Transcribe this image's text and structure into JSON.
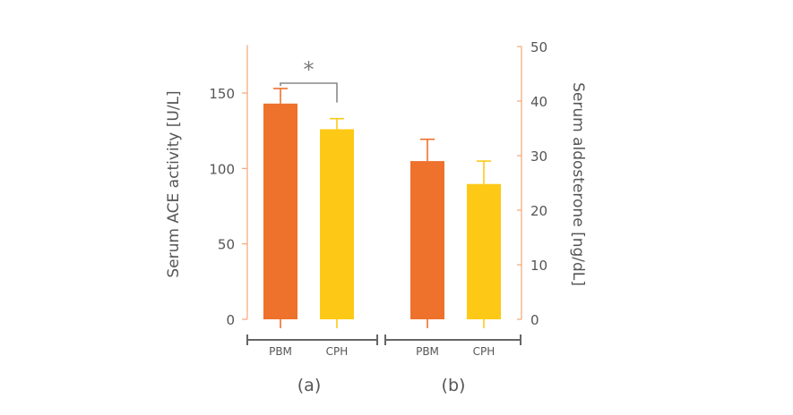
{
  "chart_data": [
    {
      "panel_label": "(a)",
      "type": "bar",
      "categories": [
        "PBM",
        "CPH"
      ],
      "values": [
        143,
        126
      ],
      "errors": [
        10,
        7
      ],
      "colors": [
        "#ee712c",
        "#fdc916"
      ],
      "ylabel": "Serum ACE activity [U/L]",
      "ylim": [
        0,
        180
      ],
      "yticks": [
        0,
        50,
        100,
        150
      ],
      "significance": {
        "between": [
          0,
          1
        ],
        "label": "*"
      }
    },
    {
      "panel_label": "(b)",
      "type": "bar",
      "categories": [
        "PBM",
        "CPH"
      ],
      "values": [
        29,
        24.8
      ],
      "errors": [
        4,
        4.2
      ],
      "colors": [
        "#ee712c",
        "#fdc916"
      ],
      "ylabel": "Serum aldosterone [ng/dL]",
      "ylim": [
        0,
        50
      ],
      "yticks": [
        0,
        10,
        20,
        30,
        40,
        50
      ]
    }
  ],
  "colors": {
    "axis": "#f2a676",
    "bracket": "#888888",
    "group_axis": "#666666"
  }
}
